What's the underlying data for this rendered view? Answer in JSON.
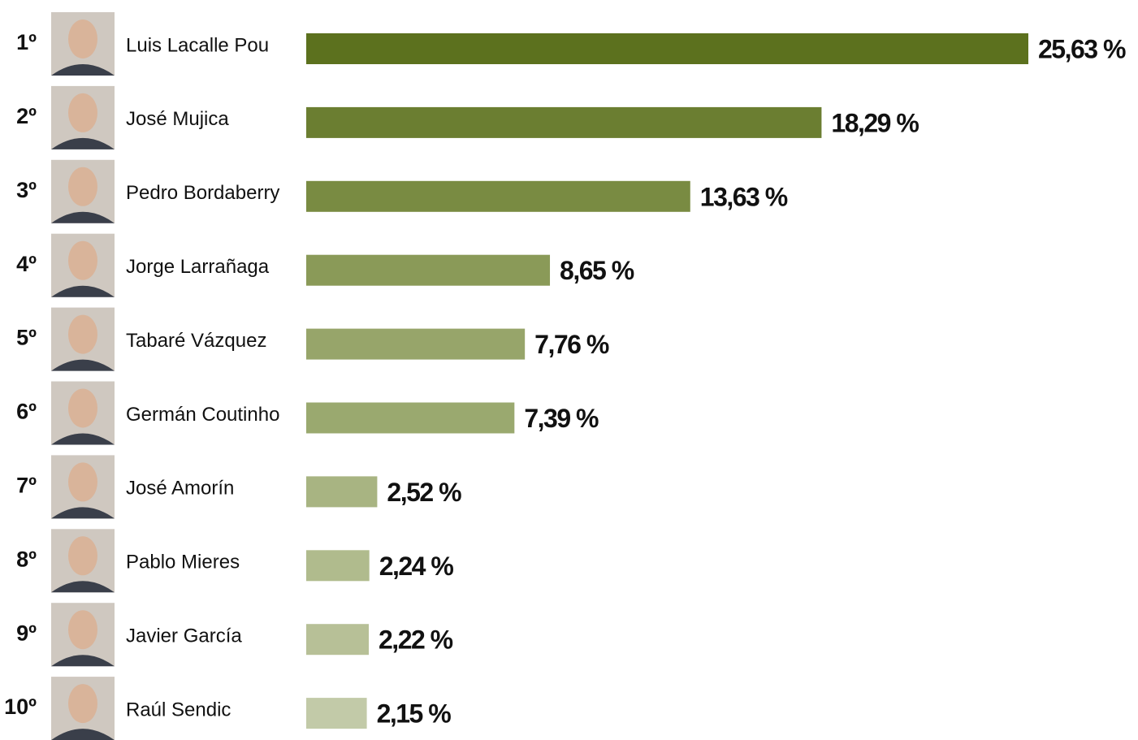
{
  "chart_data": {
    "type": "bar",
    "ranks": [
      "1º",
      "2º",
      "3º",
      "4º",
      "5º",
      "6º",
      "7º",
      "8º",
      "9º",
      "10º"
    ],
    "categories": [
      "Luis Lacalle Pou",
      "José Mujica",
      "Pedro Bordaberry",
      "Jorge Larrañaga",
      "Tabaré Vázquez",
      "Germán Coutinho",
      "José Amorín",
      "Pablo Mieres",
      "Javier García",
      "Raúl Sendic"
    ],
    "values": [
      25.63,
      18.29,
      13.63,
      8.65,
      7.76,
      7.39,
      2.52,
      2.24,
      2.22,
      2.15
    ],
    "value_labels": [
      "25,63 %",
      "18,29 %",
      "13,63 %",
      "8,65 %",
      "7,76 %",
      "7,39 %",
      "2,52 %",
      "2,24 %",
      "2,22 %",
      "2,15 %"
    ],
    "colors": [
      "#5c711e",
      "#6b7e31",
      "#798b42",
      "#8a9a58",
      "#97a56a",
      "#9aa96f",
      "#a8b482",
      "#b0bb8d",
      "#b7c097",
      "#c2caa8"
    ]
  }
}
